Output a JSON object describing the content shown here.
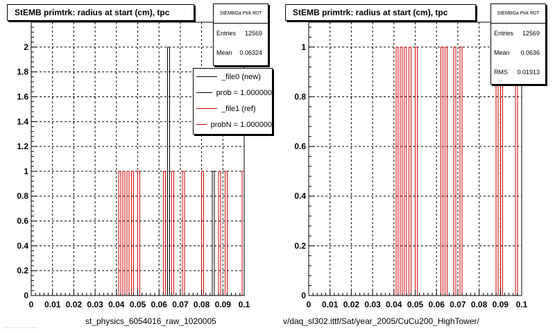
{
  "colors": {
    "new": "#000000",
    "ref": "#cc0000",
    "frame": "#000000",
    "grid": "#000000"
  },
  "footer": "... .. ... ...... ....",
  "legend": {
    "entries": [
      {
        "label": "_file0 (new)",
        "color": "#000000"
      },
      {
        "label": "prob = 1.000000",
        "color": "#000000"
      },
      {
        "label": "_file1 (ref)",
        "color": "#cc0000"
      },
      {
        "label": "probN = 1.000000",
        "color": "#cc0000"
      }
    ]
  },
  "chart_data": [
    {
      "type": "bar",
      "title": "StEMB primtrk: radius at start (cm), tpc",
      "xlabel": "st_physics_6054016_raw_1020005",
      "ylabel": "",
      "xlim": [
        0,
        0.1
      ],
      "ylim": [
        0,
        2.2
      ],
      "xticks": [
        "0",
        "0.01",
        "0.02",
        "0.03",
        "0.04",
        "0.05",
        "0.06",
        "0.07",
        "0.08",
        "0.09",
        "0.1"
      ],
      "yticks": [
        "0",
        "0.2",
        "0.4",
        "0.6",
        "0.8",
        "1",
        "1.2",
        "1.4",
        "1.6",
        "1.8",
        "2"
      ],
      "grid": true,
      "bin_width": 0.001,
      "stats": {
        "name": "StEMBGa Ptrk R0T",
        "entries_label": "Entries",
        "entries": "12569",
        "mean_label": "Mean",
        "mean": "0.06324",
        "rms_label": "",
        "rms": ""
      },
      "series": [
        {
          "name": "_file0 (new)",
          "color": "#000000",
          "bins": [
            [
              0.064,
              2
            ],
            [
              0.085,
              1
            ]
          ]
        },
        {
          "name": "_file1 (ref)",
          "color": "#cc0000",
          "bins": [
            [
              0.041,
              1
            ],
            [
              0.043,
              1
            ],
            [
              0.045,
              1
            ],
            [
              0.047,
              1
            ],
            [
              0.05,
              1
            ],
            [
              0.062,
              1
            ],
            [
              0.066,
              1
            ],
            [
              0.071,
              1
            ],
            [
              0.08,
              1
            ],
            [
              0.088,
              1
            ],
            [
              0.091,
              1
            ],
            [
              0.099,
              1
            ]
          ]
        }
      ]
    },
    {
      "type": "bar",
      "title": "StEMB primtrk: radius at start (cm), tpc",
      "xlabel": "v/daq_sl302.ittf/Sat/year_2005/CuCu200_HighTower/",
      "ylabel": "",
      "xlim": [
        0,
        0.1
      ],
      "ylim": [
        0,
        1.1
      ],
      "xticks": [
        "0",
        "0.01",
        "0.02",
        "0.03",
        "0.04",
        "0.05",
        "0.06",
        "0.07",
        "0.08",
        "0.09",
        "0.1"
      ],
      "yticks": [
        "0",
        "0.2",
        "0.4",
        "0.6",
        "0.8",
        "1"
      ],
      "grid": true,
      "bin_width": 0.001,
      "stats": {
        "name": "StEMBGa Ptrk R0T",
        "entries_label": "Entries",
        "entries": "12569",
        "mean_label": "Mean",
        "mean": "0.0636",
        "rms_label": "RMS",
        "rms": "0.01913"
      },
      "series": [
        {
          "name": "_file1 (ref)",
          "color": "#cc0000",
          "bins": [
            [
              0.041,
              1
            ],
            [
              0.043,
              1
            ],
            [
              0.045,
              1
            ],
            [
              0.047,
              1
            ],
            [
              0.05,
              1
            ],
            [
              0.062,
              1
            ],
            [
              0.064,
              1
            ],
            [
              0.068,
              1
            ],
            [
              0.071,
              1
            ],
            [
              0.088,
              1
            ],
            [
              0.09,
              1
            ],
            [
              0.097,
              1
            ]
          ]
        }
      ]
    }
  ]
}
